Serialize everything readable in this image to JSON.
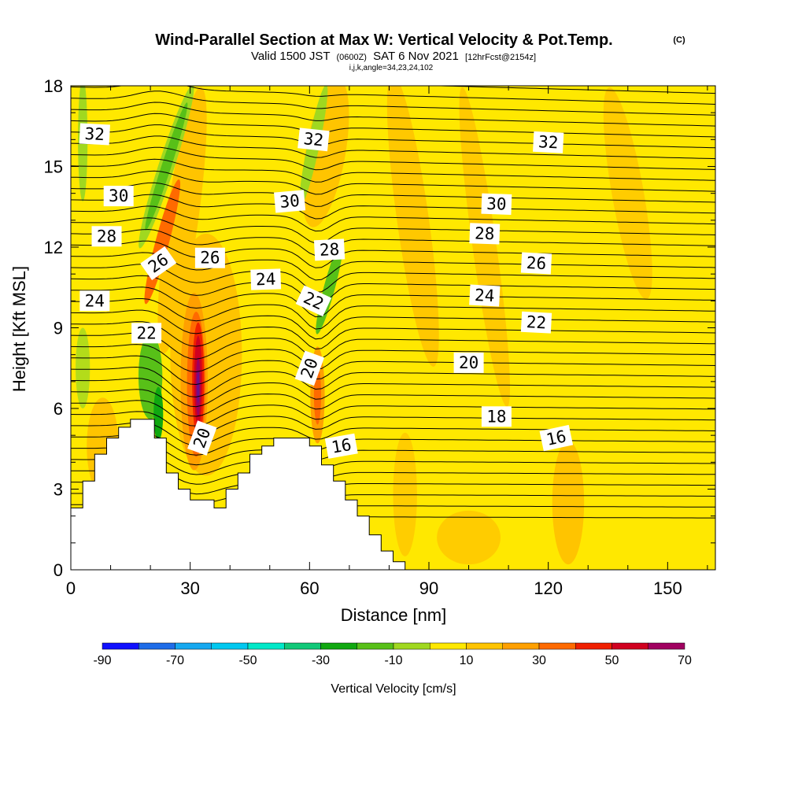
{
  "title": {
    "main": "Wind-Parallel Section at Max W: Vertical Velocity & Pot.Temp.",
    "copyright": "(C)",
    "valid_prefix": "Valid 1500 JST",
    "valid_utc": "(0600Z)",
    "valid_date": "SAT 6 Nov 2021",
    "forecast": "[12hrFcst@2154z]",
    "section_info": "i,j,k,angle=34,23,24,102"
  },
  "chart_data": {
    "type": "contour",
    "xlabel": "Distance [nm]",
    "ylabel": "Height [Kft MSL]",
    "xlim": [
      0,
      162
    ],
    "ylim": [
      0,
      18
    ],
    "x_ticks": [
      "0",
      "30",
      "60",
      "90",
      "120",
      "150"
    ],
    "x_tick_values": [
      0,
      30,
      60,
      90,
      120,
      150
    ],
    "y_ticks": [
      "0",
      "3",
      "6",
      "9",
      "12",
      "15",
      "18"
    ],
    "y_tick_values": [
      0,
      3,
      6,
      9,
      12,
      15,
      18
    ],
    "colorbar": {
      "label": "Vertical Velocity [cm/s]",
      "tick_labels": [
        "-90",
        "-70",
        "-50",
        "-30",
        "-10",
        "10",
        "30",
        "50",
        "70"
      ],
      "tick_values": [
        -90,
        -70,
        -50,
        -30,
        -10,
        10,
        30,
        50,
        70
      ],
      "bounds": [
        -90,
        -80,
        -70,
        -60,
        -50,
        -40,
        -30,
        -20,
        -10,
        0,
        10,
        20,
        30,
        40,
        50,
        60,
        70
      ],
      "colors": [
        "#1010ff",
        "#1e6ce8",
        "#16a8f0",
        "#00c8f0",
        "#00e8c8",
        "#10c878",
        "#10a810",
        "#58c018",
        "#a0d820",
        "#ffe800",
        "#ffc400",
        "#ffa000",
        "#ff6a00",
        "#f02000",
        "#d00020",
        "#a00060",
        "#6a1090"
      ]
    },
    "terrain_profile": [
      {
        "x": 0,
        "h": 2.3
      },
      {
        "x": 3,
        "h": 3.3
      },
      {
        "x": 6,
        "h": 4.3
      },
      {
        "x": 9,
        "h": 4.9
      },
      {
        "x": 12,
        "h": 5.3
      },
      {
        "x": 15,
        "h": 5.6
      },
      {
        "x": 21,
        "h": 4.9
      },
      {
        "x": 24,
        "h": 3.6
      },
      {
        "x": 27,
        "h": 3.0
      },
      {
        "x": 30,
        "h": 2.6
      },
      {
        "x": 36,
        "h": 2.3
      },
      {
        "x": 39,
        "h": 3.0
      },
      {
        "x": 42,
        "h": 3.6
      },
      {
        "x": 45,
        "h": 4.3
      },
      {
        "x": 48,
        "h": 4.6
      },
      {
        "x": 51,
        "h": 4.9
      },
      {
        "x": 57,
        "h": 4.9
      },
      {
        "x": 60,
        "h": 4.6
      },
      {
        "x": 63,
        "h": 3.9
      },
      {
        "x": 66,
        "h": 3.3
      },
      {
        "x": 69,
        "h": 2.6
      },
      {
        "x": 72,
        "h": 2.0
      },
      {
        "x": 75,
        "h": 1.3
      },
      {
        "x": 78,
        "h": 0.7
      },
      {
        "x": 81,
        "h": 0.3
      },
      {
        "x": 84,
        "h": 0
      }
    ],
    "contour_labels": [
      {
        "text": "32",
        "x": 6,
        "y": 16.2,
        "angle": 3
      },
      {
        "text": "32",
        "x": 61,
        "y": 16.0,
        "angle": 6
      },
      {
        "text": "32",
        "x": 120,
        "y": 15.9,
        "angle": 3
      },
      {
        "text": "30",
        "x": 12,
        "y": 13.9,
        "angle": 0
      },
      {
        "text": "30",
        "x": 55,
        "y": 13.7,
        "angle": -5
      },
      {
        "text": "30",
        "x": 107,
        "y": 13.6,
        "angle": 2
      },
      {
        "text": "28",
        "x": 9,
        "y": 12.4,
        "angle": 0
      },
      {
        "text": "28",
        "x": 65,
        "y": 11.9,
        "angle": -3
      },
      {
        "text": "28",
        "x": 104,
        "y": 12.5,
        "angle": 2
      },
      {
        "text": "26",
        "x": 22,
        "y": 11.4,
        "angle": -35
      },
      {
        "text": "26",
        "x": 35,
        "y": 11.6,
        "angle": 0
      },
      {
        "text": "26",
        "x": 117,
        "y": 11.4,
        "angle": 3
      },
      {
        "text": "24",
        "x": 6,
        "y": 10.0,
        "angle": 0
      },
      {
        "text": "24",
        "x": 49,
        "y": 10.8,
        "angle": -2
      },
      {
        "text": "24",
        "x": 104,
        "y": 10.2,
        "angle": 3
      },
      {
        "text": "22",
        "x": 19,
        "y": 8.8,
        "angle": 0
      },
      {
        "text": "22",
        "x": 61,
        "y": 10.0,
        "angle": 25
      },
      {
        "text": "22",
        "x": 117,
        "y": 9.2,
        "angle": 3
      },
      {
        "text": "20",
        "x": 33,
        "y": 4.9,
        "angle": -70
      },
      {
        "text": "20",
        "x": 60,
        "y": 7.5,
        "angle": -70
      },
      {
        "text": "20",
        "x": 100,
        "y": 7.7,
        "angle": 0
      },
      {
        "text": "18",
        "x": 107,
        "y": 5.7,
        "angle": 0
      },
      {
        "text": "16",
        "x": 68,
        "y": 4.6,
        "angle": -10
      },
      {
        "text": "16",
        "x": 122,
        "y": 4.9,
        "angle": -12
      }
    ]
  }
}
